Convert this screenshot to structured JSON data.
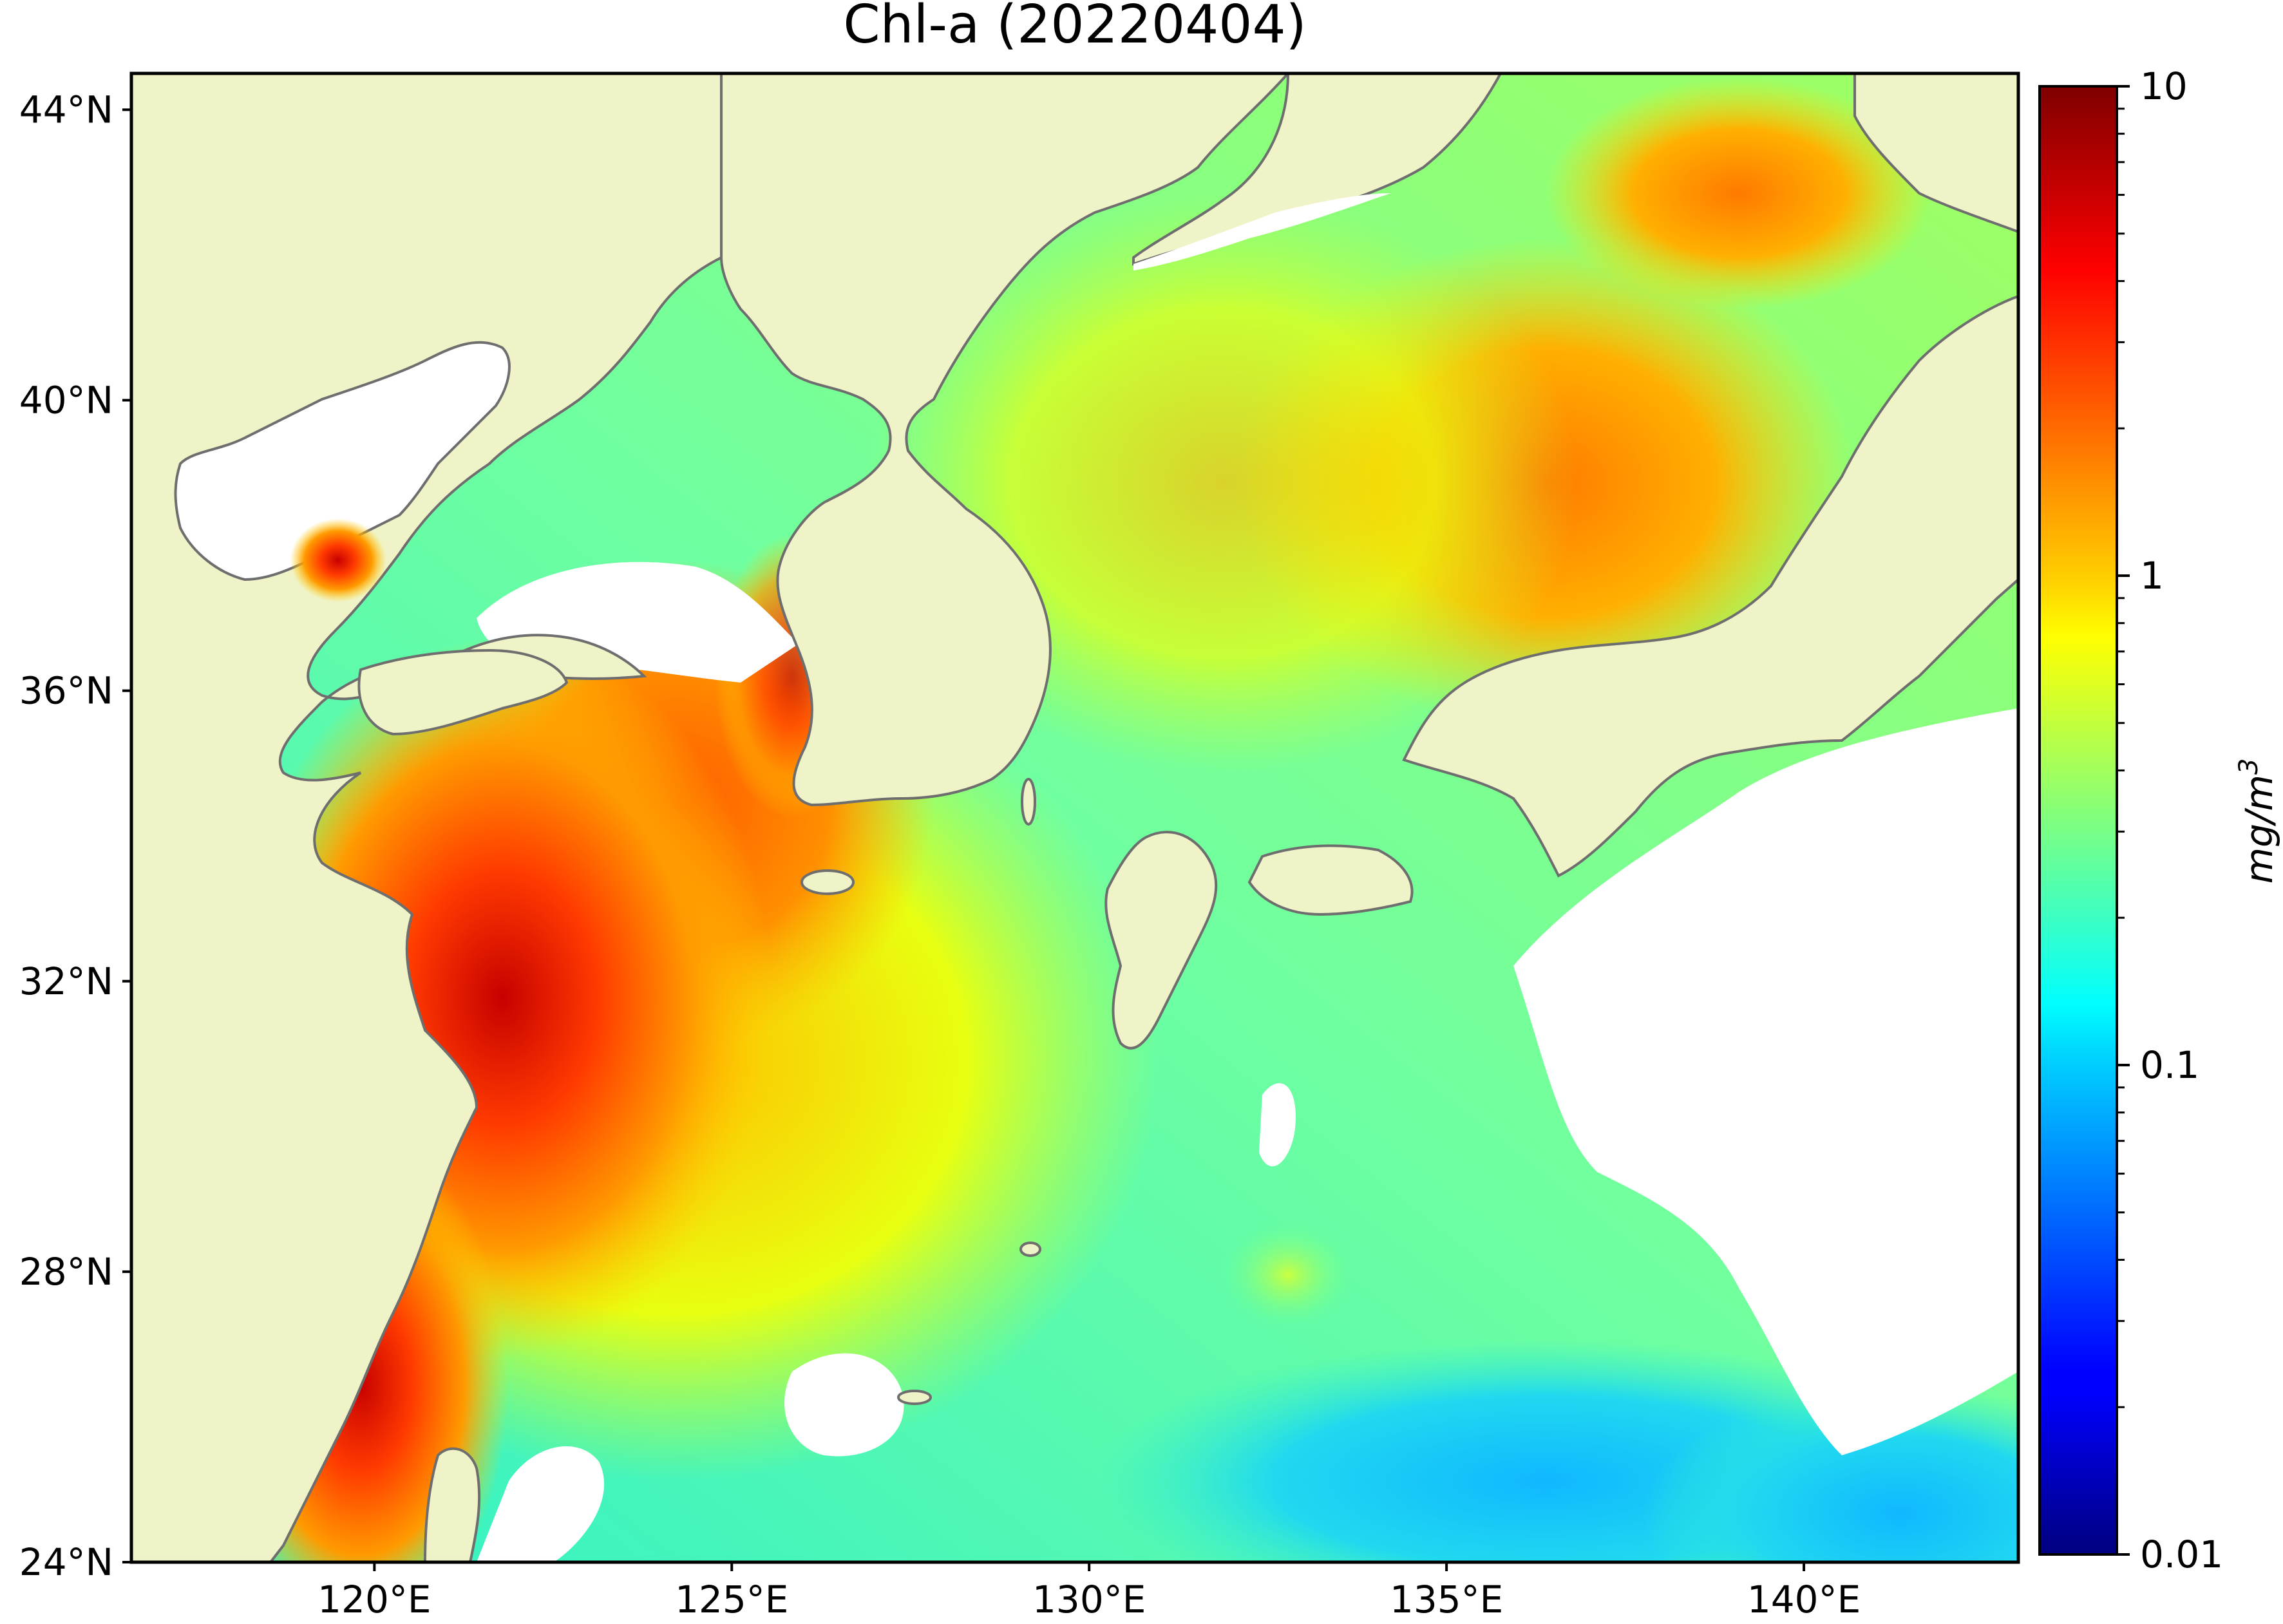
{
  "map": {
    "title": "Chl-a (20220404)",
    "lon_ticks": [
      {
        "value": 120,
        "label": "120°E"
      },
      {
        "value": 125,
        "label": "125°E"
      },
      {
        "value": 130,
        "label": "130°E"
      },
      {
        "value": 135,
        "label": "135°E"
      },
      {
        "value": 140,
        "label": "140°E"
      }
    ],
    "lat_ticks": [
      {
        "value": 24,
        "label": "24°N"
      },
      {
        "value": 28,
        "label": "28°N"
      },
      {
        "value": 32,
        "label": "32°N"
      },
      {
        "value": 36,
        "label": "36°N"
      },
      {
        "value": 40,
        "label": "40°N"
      },
      {
        "value": 44,
        "label": "44°N"
      }
    ],
    "lon_range": [
      116.6,
      143.0
    ],
    "lat_range": [
      24,
      44.5
    ],
    "colors": {
      "land": "#f0f3c8",
      "no_data": "#ffffff",
      "coastline": "#6e6e6e"
    }
  },
  "colorbar": {
    "label_base": "mg/m",
    "label_exponent": "3",
    "scale": "log",
    "range": [
      0.01,
      10
    ],
    "colormap": "jet",
    "ticks": [
      {
        "value": 10,
        "label": "10"
      },
      {
        "value": 1,
        "label": "1"
      },
      {
        "value": 0.1,
        "label": "0.1"
      },
      {
        "value": 0.01,
        "label": "0.01"
      }
    ]
  }
}
